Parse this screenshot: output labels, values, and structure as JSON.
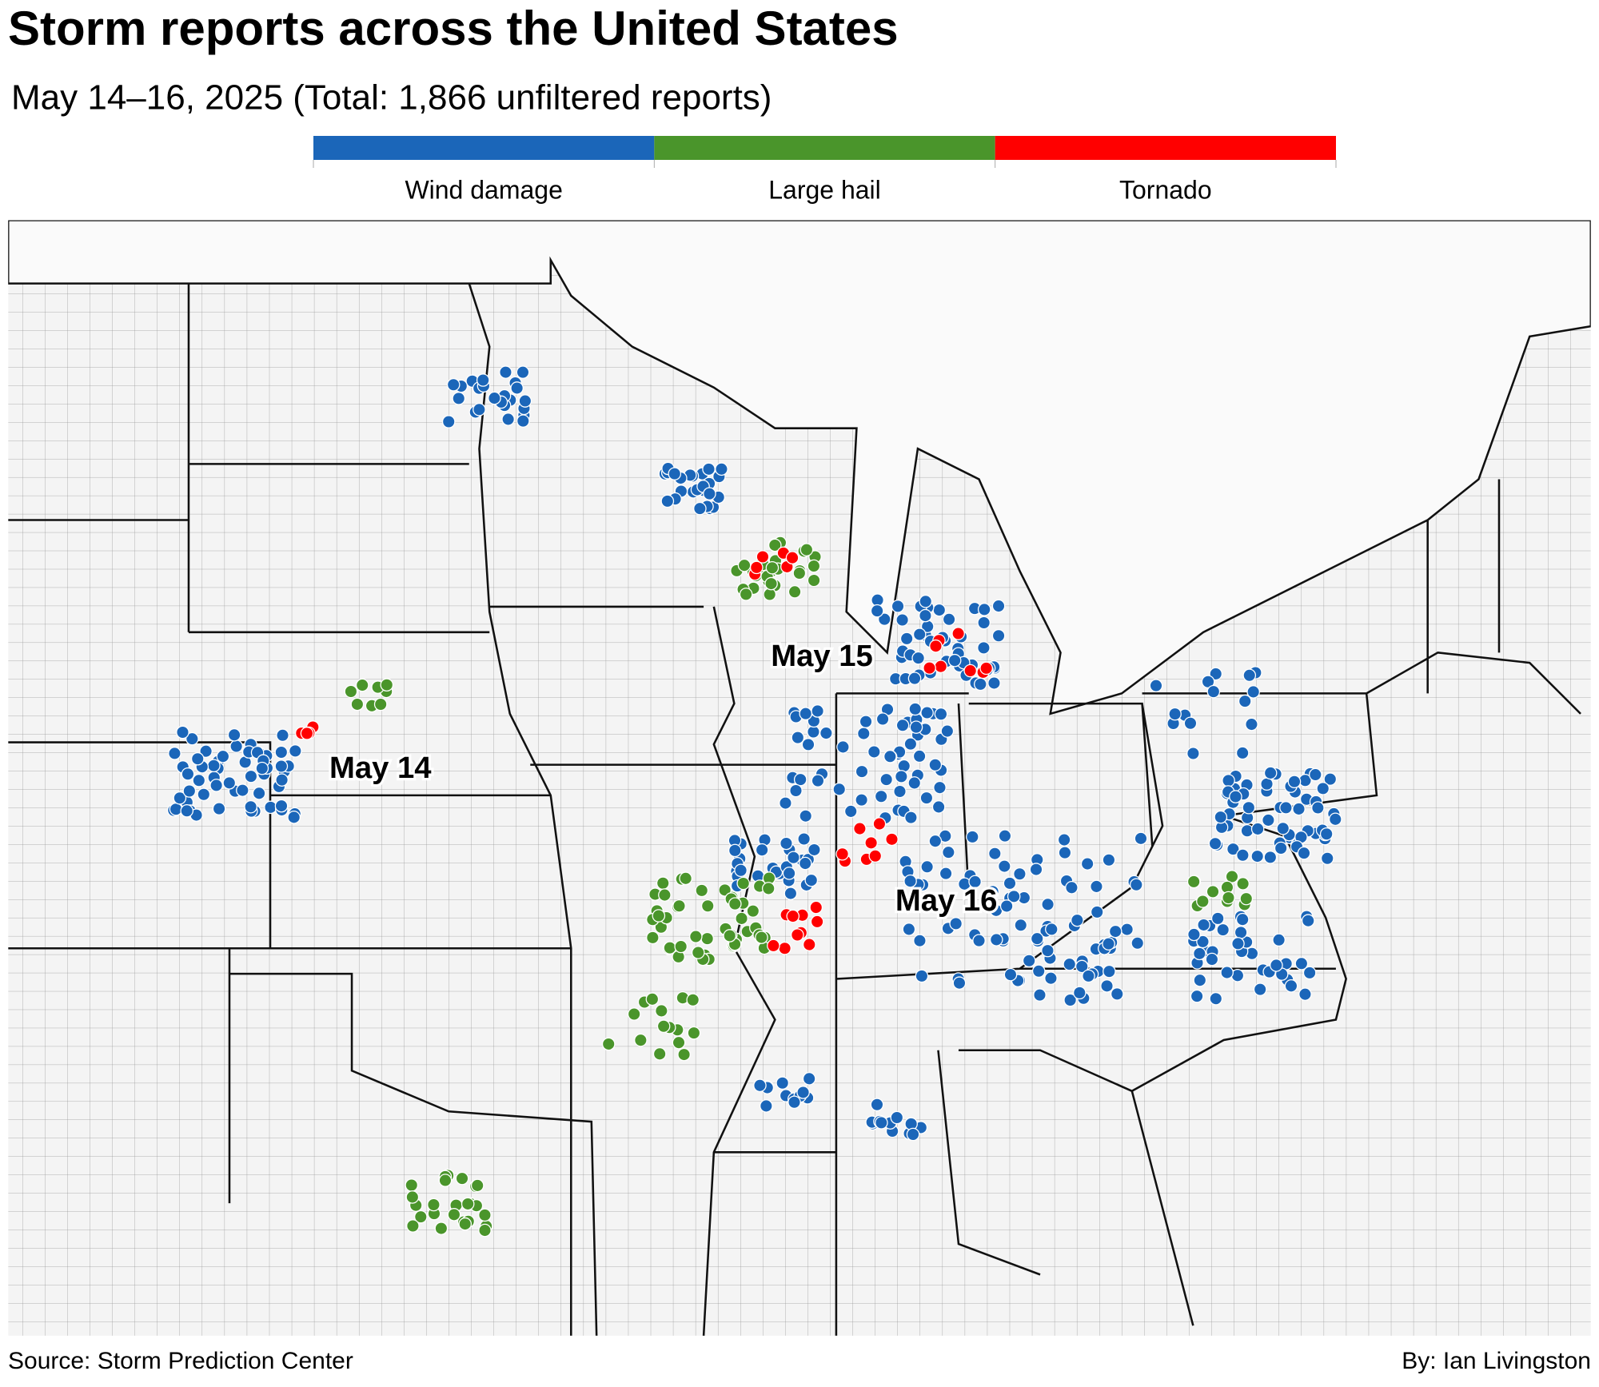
{
  "header": {
    "title": "Storm reports across the United States",
    "subtitle": "May 14–16, 2025 (Total: 1,866 unfiltered reports)"
  },
  "legend": {
    "items": [
      {
        "label": "Wind damage",
        "color": "#1b66b9"
      },
      {
        "label": "Large hail",
        "color": "#4a952b"
      },
      {
        "label": "Tornado",
        "color": "#ff0000"
      }
    ]
  },
  "map": {
    "annotations": [
      "May 14",
      "May 15",
      "May 16"
    ]
  },
  "footer": {
    "source": "Source: Storm Prediction Center",
    "byline": "By: Ian Livingston"
  }
}
